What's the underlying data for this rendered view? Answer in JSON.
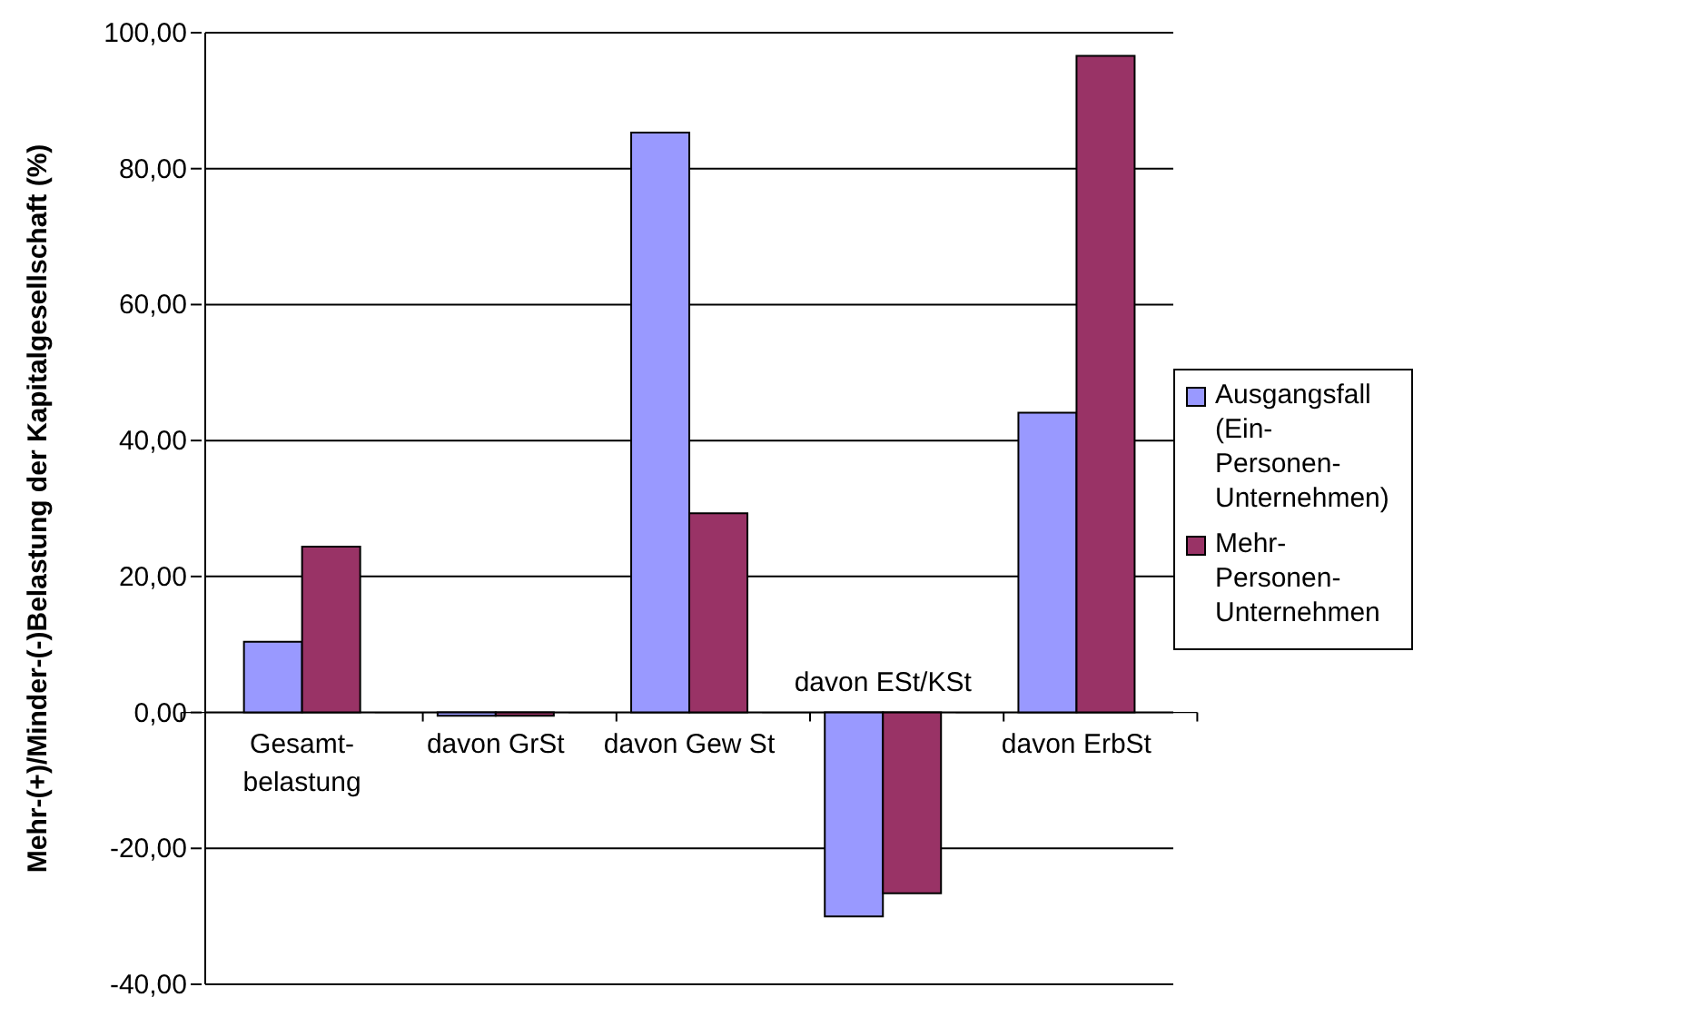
{
  "chart_data": {
    "type": "bar",
    "ylabel": "Mehr-(+)/Minder-(-)Belastung der Kapitalgesellschaft (%)",
    "categories": [
      "Gesamt-belastung",
      "davon GrSt",
      "davon Gew St",
      "davon ESt/KSt",
      "davon ErbSt"
    ],
    "series": [
      {
        "name": "Ausgangsfall (Ein-Personen-Unternehmen)",
        "color": "#9999ff",
        "values": [
          10.4,
          -0.5,
          85.3,
          -30.0,
          44.1
        ]
      },
      {
        "name": "Mehr-Personen-Unternehmen",
        "color": "#993366",
        "values": [
          24.4,
          -0.5,
          29.3,
          -26.6,
          96.6
        ]
      }
    ],
    "ylim": [
      -40,
      100
    ],
    "yticks": [
      {
        "value": -40,
        "label": "-40,00"
      },
      {
        "value": -20,
        "label": "-20,00"
      },
      {
        "value": 0,
        "label": "0,00"
      },
      {
        "value": 20,
        "label": "20,00"
      },
      {
        "value": 40,
        "label": "40,00"
      },
      {
        "value": 60,
        "label": "60,00"
      },
      {
        "value": 80,
        "label": "80,00"
      },
      {
        "value": 100,
        "label": "100,00"
      }
    ],
    "grid": "y",
    "legend": "right"
  }
}
